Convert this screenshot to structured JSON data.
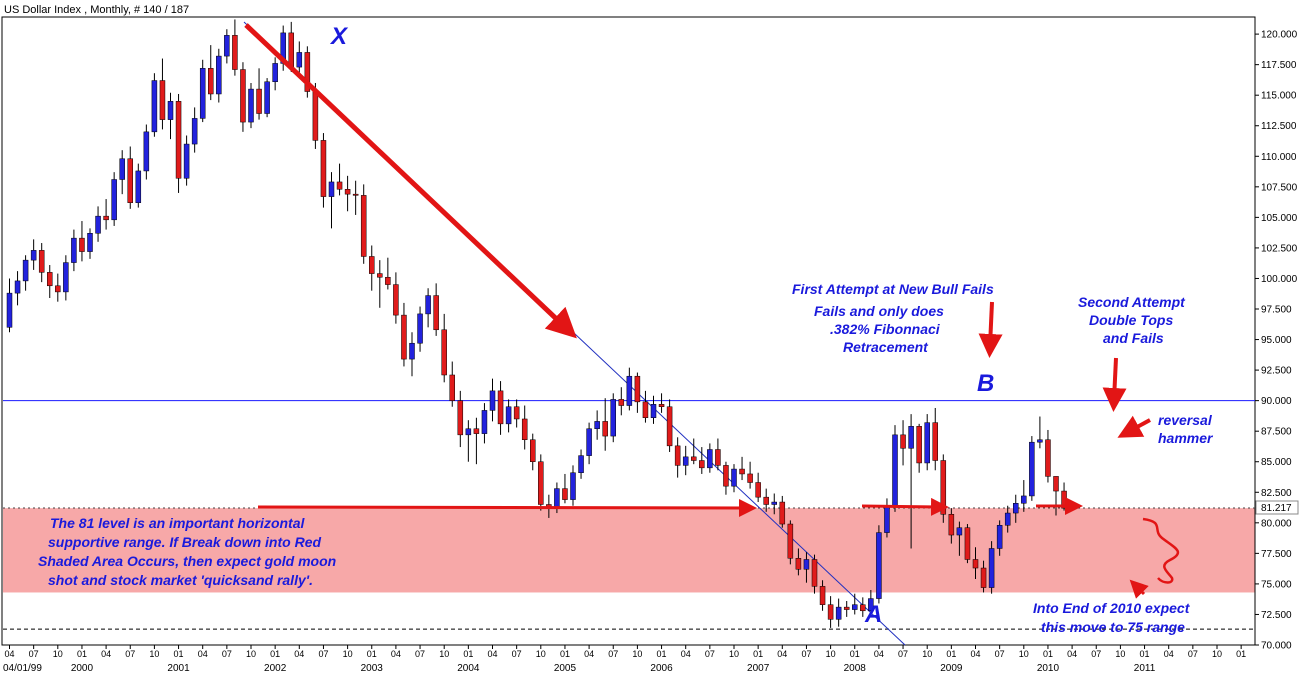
{
  "header": {
    "title": "US Dollar Index , Monthly, # 140 / 187"
  },
  "colors": {
    "up": "#2222dd",
    "down": "#e01b1b",
    "zone_fill": "#f7a8a8",
    "annotation": "#1a1adc",
    "arrow": "#e21515",
    "trendline": "#2030c0"
  },
  "chart_data": {
    "type": "candlestick",
    "title": "US Dollar Index , Monthly, # 140 / 187",
    "ylim": [
      70,
      121.4
    ],
    "y_ticks": [
      "70.000",
      "72.500",
      "75.000",
      "77.500",
      "80.000",
      "82.500",
      "85.000",
      "87.500",
      "90.000",
      "92.500",
      "95.000",
      "97.500",
      "100.000",
      "102.500",
      "105.000",
      "107.500",
      "110.000",
      "112.500",
      "115.000",
      "117.500",
      "120.000"
    ],
    "last_price_label": "81.217",
    "x_start_label": "04/01/99",
    "year_labels": [
      {
        "label": "2000",
        "bar": 9
      },
      {
        "label": "2001",
        "bar": 21
      },
      {
        "label": "2002",
        "bar": 33
      },
      {
        "label": "2003",
        "bar": 45
      },
      {
        "label": "2004",
        "bar": 57
      },
      {
        "label": "2005",
        "bar": 69
      },
      {
        "label": "2006",
        "bar": 81
      },
      {
        "label": "2007",
        "bar": 93
      },
      {
        "label": "2008",
        "bar": 105
      },
      {
        "label": "2009",
        "bar": 117
      },
      {
        "label": "2010",
        "bar": 129
      },
      {
        "label": "2011",
        "bar": 141
      }
    ],
    "month_ticks": [
      "04",
      "07",
      "10",
      "01"
    ],
    "series": [
      {
        "name": "",
        "values": [
          [
            96.0,
            100.0,
            95.6,
            98.8
          ],
          [
            98.8,
            100.6,
            97.8,
            99.8
          ],
          [
            99.8,
            101.9,
            99.0,
            101.5
          ],
          [
            101.5,
            103.2,
            100.7,
            102.3
          ],
          [
            102.3,
            102.9,
            99.7,
            100.5
          ],
          [
            100.5,
            101.1,
            98.4,
            99.4
          ],
          [
            99.4,
            100.4,
            98.1,
            98.9
          ],
          [
            98.9,
            101.9,
            98.2,
            101.3
          ],
          [
            101.3,
            104.0,
            100.6,
            103.3
          ],
          [
            103.3,
            104.7,
            101.4,
            102.2
          ],
          [
            102.2,
            104.1,
            101.6,
            103.7
          ],
          [
            103.7,
            105.9,
            103.0,
            105.1
          ],
          [
            105.1,
            106.5,
            104.0,
            104.8
          ],
          [
            104.8,
            108.7,
            104.3,
            108.1
          ],
          [
            108.1,
            110.5,
            106.9,
            109.8
          ],
          [
            109.8,
            110.8,
            105.7,
            106.2
          ],
          [
            106.2,
            109.4,
            105.8,
            108.8
          ],
          [
            108.8,
            112.6,
            108.1,
            112.0
          ],
          [
            112.0,
            116.8,
            111.6,
            116.2
          ],
          [
            116.2,
            118.0,
            112.2,
            113.0
          ],
          [
            113.0,
            115.2,
            111.4,
            114.5
          ],
          [
            114.5,
            115.1,
            107.0,
            108.2
          ],
          [
            108.2,
            111.7,
            107.6,
            111.0
          ],
          [
            111.0,
            114.0,
            110.3,
            113.1
          ],
          [
            113.1,
            117.9,
            112.8,
            117.2
          ],
          [
            117.2,
            119.1,
            114.6,
            115.1
          ],
          [
            115.1,
            118.8,
            114.4,
            118.2
          ],
          [
            118.2,
            120.4,
            117.6,
            119.9
          ],
          [
            119.9,
            121.2,
            116.6,
            117.1
          ],
          [
            117.1,
            117.7,
            112.0,
            112.8
          ],
          [
            112.8,
            116.0,
            112.3,
            115.5
          ],
          [
            115.5,
            117.2,
            113.0,
            113.5
          ],
          [
            113.5,
            116.4,
            113.2,
            116.1
          ],
          [
            116.1,
            118.1,
            115.4,
            117.6
          ],
          [
            117.6,
            120.7,
            117.0,
            120.1
          ],
          [
            120.1,
            121.0,
            116.9,
            117.3
          ],
          [
            117.3,
            119.4,
            116.5,
            118.5
          ],
          [
            118.5,
            119.0,
            114.8,
            115.3
          ],
          [
            115.3,
            116.0,
            110.6,
            111.3
          ],
          [
            111.3,
            111.9,
            105.8,
            106.7
          ],
          [
            106.7,
            108.7,
            104.1,
            107.9
          ],
          [
            107.9,
            109.4,
            106.8,
            107.3
          ],
          [
            107.3,
            108.4,
            105.5,
            106.9
          ],
          [
            106.9,
            108.0,
            105.2,
            106.8
          ],
          [
            106.8,
            107.7,
            101.2,
            101.8
          ],
          [
            101.8,
            102.7,
            99.0,
            100.4
          ],
          [
            100.4,
            101.5,
            97.6,
            100.1
          ],
          [
            100.1,
            101.7,
            99.1,
            99.5
          ],
          [
            99.5,
            100.5,
            96.3,
            97.0
          ],
          [
            97.0,
            98.0,
            92.8,
            93.4
          ],
          [
            93.4,
            95.6,
            92.0,
            94.7
          ],
          [
            94.7,
            97.7,
            94.0,
            97.1
          ],
          [
            97.1,
            99.2,
            96.0,
            98.6
          ],
          [
            98.6,
            99.6,
            95.3,
            95.8
          ],
          [
            95.8,
            97.1,
            91.5,
            92.1
          ],
          [
            92.1,
            93.2,
            89.5,
            90.0
          ],
          [
            90.0,
            90.8,
            86.2,
            87.2
          ],
          [
            87.2,
            88.4,
            85.0,
            87.7
          ],
          [
            87.7,
            88.6,
            84.8,
            87.3
          ],
          [
            87.3,
            89.8,
            86.5,
            89.2
          ],
          [
            89.2,
            91.8,
            88.3,
            90.8
          ],
          [
            90.8,
            91.6,
            87.2,
            88.1
          ],
          [
            88.1,
            90.1,
            87.4,
            89.5
          ],
          [
            89.5,
            90.1,
            87.8,
            88.5
          ],
          [
            88.5,
            89.6,
            86.0,
            86.8
          ],
          [
            86.8,
            87.3,
            84.3,
            85.0
          ],
          [
            85.0,
            85.6,
            81.0,
            81.5
          ],
          [
            81.5,
            82.3,
            80.4,
            81.3
          ],
          [
            81.3,
            83.3,
            80.8,
            82.8
          ],
          [
            82.8,
            84.0,
            81.6,
            81.9
          ],
          [
            81.9,
            84.7,
            81.4,
            84.1
          ],
          [
            84.1,
            86.0,
            83.6,
            85.5
          ],
          [
            85.5,
            88.2,
            84.8,
            87.7
          ],
          [
            87.7,
            89.2,
            86.8,
            88.3
          ],
          [
            88.3,
            90.2,
            85.9,
            87.1
          ],
          [
            87.1,
            90.6,
            86.6,
            90.1
          ],
          [
            90.1,
            91.1,
            88.8,
            89.6
          ],
          [
            89.6,
            92.7,
            89.2,
            92.0
          ],
          [
            92.0,
            92.3,
            89.0,
            89.9
          ],
          [
            89.9,
            90.8,
            88.2,
            88.6
          ],
          [
            88.6,
            90.4,
            88.1,
            89.7
          ],
          [
            89.7,
            90.6,
            89.0,
            89.5
          ],
          [
            89.5,
            90.1,
            85.8,
            86.3
          ],
          [
            86.3,
            87.0,
            83.7,
            84.7
          ],
          [
            84.7,
            86.3,
            83.9,
            85.4
          ],
          [
            85.4,
            86.9,
            84.8,
            85.1
          ],
          [
            85.1,
            86.2,
            84.0,
            84.5
          ],
          [
            84.5,
            86.5,
            84.1,
            86.0
          ],
          [
            86.0,
            86.9,
            84.3,
            84.7
          ],
          [
            84.7,
            85.0,
            82.3,
            83.0
          ],
          [
            83.0,
            84.8,
            82.5,
            84.4
          ],
          [
            84.4,
            85.4,
            83.5,
            84.0
          ],
          [
            84.0,
            85.0,
            82.8,
            83.3
          ],
          [
            83.3,
            84.1,
            81.7,
            82.1
          ],
          [
            82.1,
            82.8,
            80.9,
            81.5
          ],
          [
            81.5,
            82.4,
            80.7,
            81.7
          ],
          [
            81.7,
            82.2,
            79.6,
            79.9
          ],
          [
            79.9,
            80.2,
            76.6,
            77.1
          ],
          [
            77.1,
            77.9,
            75.7,
            76.2
          ],
          [
            76.2,
            77.6,
            75.1,
            77.0
          ],
          [
            77.0,
            77.4,
            74.2,
            74.8
          ],
          [
            74.8,
            75.3,
            72.8,
            73.3
          ],
          [
            73.3,
            74.0,
            71.4,
            72.1
          ],
          [
            72.1,
            73.8,
            71.5,
            73.1
          ],
          [
            73.1,
            73.6,
            72.3,
            72.9
          ],
          [
            72.9,
            74.2,
            72.5,
            73.3
          ],
          [
            73.3,
            73.9,
            72.3,
            72.8
          ],
          [
            72.8,
            74.5,
            72.5,
            73.8
          ],
          [
            73.8,
            79.8,
            73.4,
            79.2
          ],
          [
            79.2,
            82.0,
            78.8,
            81.4
          ],
          [
            81.4,
            88.0,
            80.9,
            87.2
          ],
          [
            87.2,
            88.4,
            84.7,
            86.1
          ],
          [
            86.1,
            88.9,
            77.9,
            87.9
          ],
          [
            87.9,
            88.1,
            84.1,
            84.9
          ],
          [
            84.9,
            88.9,
            84.3,
            88.2
          ],
          [
            88.2,
            89.4,
            84.3,
            85.1
          ],
          [
            85.1,
            85.6,
            80.0,
            80.7
          ],
          [
            80.7,
            81.2,
            78.3,
            79.0
          ],
          [
            79.0,
            80.1,
            77.3,
            79.6
          ],
          [
            79.6,
            79.9,
            76.7,
            77.0
          ],
          [
            77.0,
            78.0,
            75.4,
            76.3
          ],
          [
            76.3,
            76.9,
            74.3,
            74.7
          ],
          [
            74.7,
            78.5,
            74.2,
            77.9
          ],
          [
            77.9,
            80.2,
            77.3,
            79.8
          ],
          [
            79.8,
            81.4,
            79.2,
            80.8
          ],
          [
            80.8,
            82.3,
            80.0,
            81.6
          ],
          [
            81.6,
            83.5,
            80.9,
            82.2
          ],
          [
            82.2,
            87.1,
            81.8,
            86.6
          ],
          [
            86.6,
            88.7,
            86.1,
            86.8
          ],
          [
            86.8,
            87.6,
            83.3,
            83.8
          ],
          [
            83.8,
            83.8,
            80.6,
            82.6
          ],
          [
            82.6,
            83.3,
            81.0,
            81.2
          ]
        ]
      }
    ],
    "horizontal_levels": [
      {
        "name": "resistance",
        "value": 90.0,
        "color": "#1a1aff"
      },
      {
        "name": "support-dashed",
        "value": 71.3,
        "color": "#000000"
      }
    ],
    "shaded_zone": {
      "from": 74.3,
      "to": 81.2
    }
  },
  "annotations": {
    "x_label": "X",
    "a_label": "A",
    "b_label": "B",
    "fib_title": "First Attempt at New Bull Fails",
    "fib_line1": "Fails and only does",
    "fib_line2": ".382% Fibonnaci",
    "fib_line3": "Retracement",
    "second_line1": "Second Attempt",
    "second_line2": "Double Tops",
    "second_line3": "and Fails",
    "reversal_line1": "reversal",
    "reversal_line2": "hammer",
    "level_line1": "The 81 level is an important horizontal",
    "level_line2": "supportive range.  If Break down into Red",
    "level_line3": "Shaded Area Occurs, then expect gold moon",
    "level_line4": "shot and stock market 'quicksand rally'.",
    "forecast_line1": "Into End of 2010 expect",
    "forecast_line2": "this move to 75 range"
  }
}
